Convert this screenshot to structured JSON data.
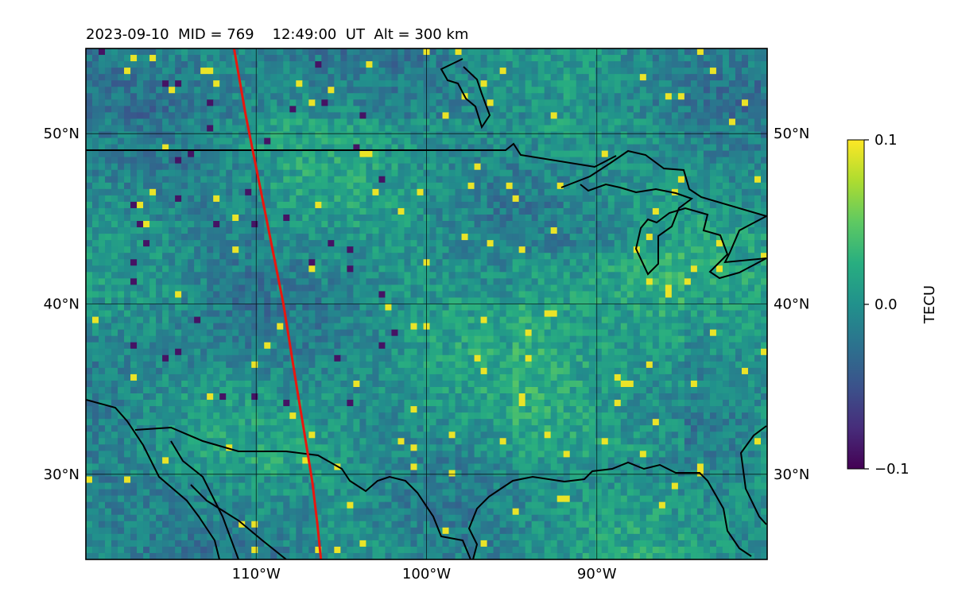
{
  "chart_data": {
    "type": "heatmap",
    "title": "2023-09-10  MID = 769    12:49:00  UT  Alt = 300 km",
    "xlim": [
      -120,
      -80
    ],
    "ylim": [
      25,
      55
    ],
    "x_ticks": [
      {
        "value": -110,
        "label": "110°W"
      },
      {
        "value": -100,
        "label": "100°W"
      },
      {
        "value": -90,
        "label": "90°W"
      }
    ],
    "y_ticks": [
      {
        "value": 30,
        "label": "30°N"
      },
      {
        "value": 40,
        "label": "40°N"
      },
      {
        "value": 50,
        "label": "50°N"
      }
    ],
    "colorbar": {
      "label": "TECU",
      "min": -0.1,
      "max": 0.1,
      "ticks": [
        {
          "value": 0.1,
          "label": "0.1"
        },
        {
          "value": 0.0,
          "label": "0.0"
        },
        {
          "value": -0.1,
          "label": "−0.1"
        }
      ],
      "colormap": "viridis"
    },
    "grid": true,
    "track_color": "#e8170f",
    "track": [
      [
        -111.3,
        55
      ],
      [
        -110.6,
        51
      ],
      [
        -110.1,
        48.5
      ],
      [
        -109.5,
        45.5
      ],
      [
        -108.9,
        42.5
      ],
      [
        -108.4,
        40
      ],
      [
        -108.0,
        37.5
      ],
      [
        -107.6,
        35
      ],
      [
        -107.1,
        32
      ],
      [
        -106.7,
        29.5
      ],
      [
        -106.4,
        27
      ],
      [
        -106.2,
        25
      ]
    ]
  }
}
